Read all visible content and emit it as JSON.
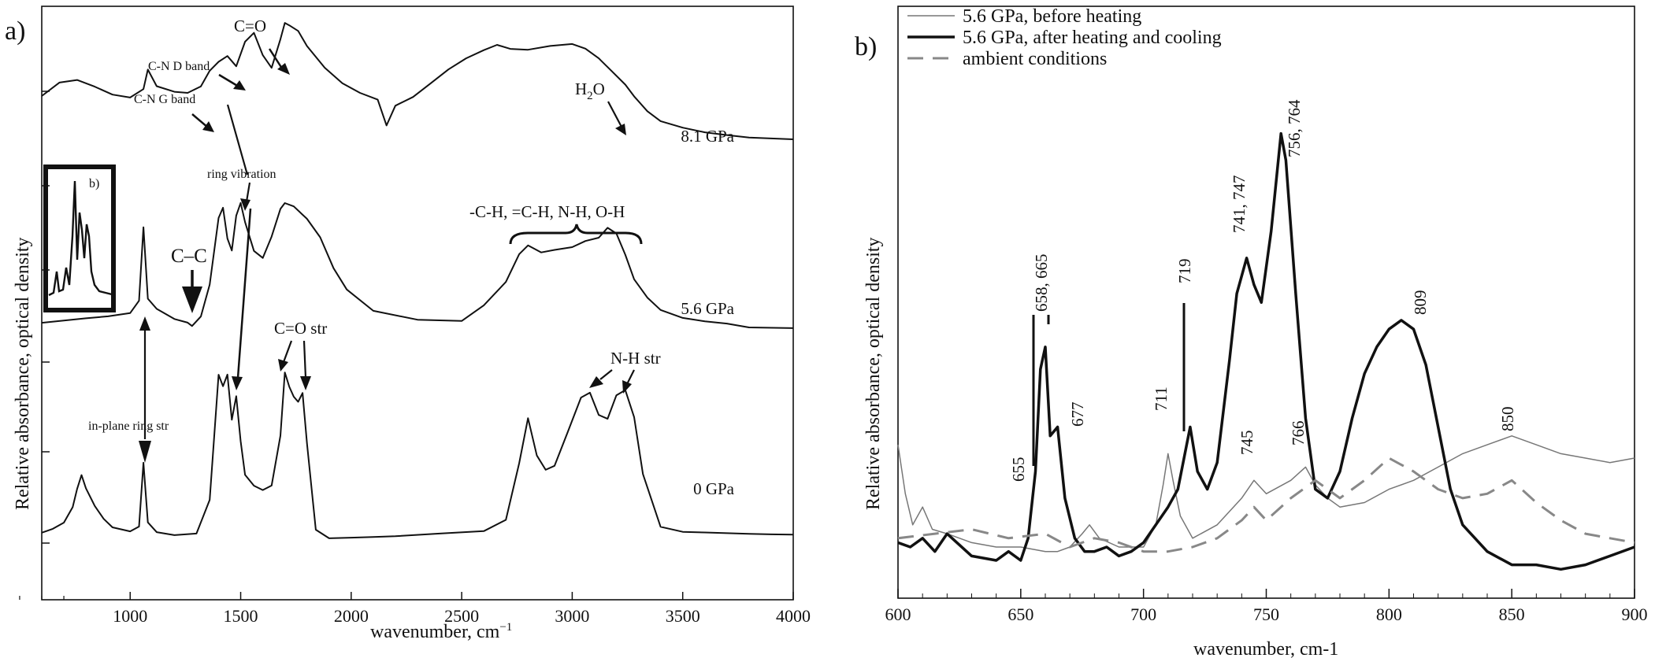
{
  "figure": {
    "label_a": "a)",
    "label_b": "b)"
  },
  "chart_data": [
    {
      "type": "line",
      "panel": "a",
      "xlabel": "wavenumber, cm",
      "xlabel_superscript": "−1",
      "ylabel": "Relative absorbance, optical density",
      "xlim": [
        600,
        4000
      ],
      "xticks": [
        1000,
        1500,
        2000,
        2500,
        3000,
        3500,
        4000
      ],
      "tick_labels": [
        "1000",
        "1500",
        "2000",
        "2500",
        "3000",
        "3500",
        "4000"
      ],
      "series": [
        {
          "name": "8.1 GPa",
          "x": [
            600,
            680,
            760,
            840,
            920,
            1000,
            1060,
            1080,
            1120,
            1200,
            1260,
            1320,
            1360,
            1400,
            1440,
            1480,
            1520,
            1560,
            1600,
            1640,
            1680,
            1700,
            1720,
            1760,
            1800,
            1880,
            1960,
            2040,
            2120,
            2160,
            2200,
            2280,
            2360,
            2440,
            2520,
            2600,
            2660,
            2720,
            2800,
            2900,
            3000,
            3060,
            3120,
            3180,
            3240,
            3280,
            3340,
            3400,
            3500,
            3600,
            3700,
            3800,
            3900,
            4000
          ],
          "y": [
            0.55,
            0.64,
            0.66,
            0.62,
            0.57,
            0.55,
            0.6,
            0.72,
            0.61,
            0.57,
            0.56,
            0.6,
            0.7,
            0.76,
            0.8,
            0.74,
            0.9,
            0.96,
            0.82,
            0.74,
            0.92,
            1.02,
            1.0,
            0.96,
            0.86,
            0.72,
            0.62,
            0.56,
            0.52,
            0.36,
            0.49,
            0.55,
            0.64,
            0.73,
            0.8,
            0.85,
            0.88,
            0.85,
            0.84,
            0.86,
            0.87,
            0.84,
            0.78,
            0.7,
            0.62,
            0.55,
            0.46,
            0.4,
            0.36,
            0.33,
            0.31,
            0.29,
            0.28,
            0.27
          ]
        },
        {
          "name": "5.6 GPa",
          "x": [
            600,
            700,
            800,
            900,
            1000,
            1040,
            1060,
            1080,
            1120,
            1200,
            1260,
            1280,
            1320,
            1360,
            1400,
            1420,
            1440,
            1460,
            1480,
            1500,
            1520,
            1560,
            1600,
            1640,
            1680,
            1700,
            1740,
            1800,
            1860,
            1920,
            1980,
            2100,
            2300,
            2500,
            2600,
            2700,
            2760,
            2800,
            2860,
            2920,
            3000,
            3060,
            3120,
            3160,
            3200,
            3240,
            3280,
            3340,
            3400,
            3500,
            3600,
            3700,
            3800,
            4000
          ],
          "y": [
            0.25,
            0.26,
            0.27,
            0.28,
            0.3,
            0.38,
            0.85,
            0.4,
            0.34,
            0.28,
            0.26,
            0.24,
            0.3,
            0.5,
            0.92,
            0.98,
            0.78,
            0.7,
            0.92,
            1.0,
            0.88,
            0.7,
            0.66,
            0.8,
            0.98,
            1.02,
            1.0,
            0.92,
            0.8,
            0.6,
            0.46,
            0.32,
            0.26,
            0.25,
            0.35,
            0.5,
            0.68,
            0.74,
            0.7,
            0.72,
            0.74,
            0.78,
            0.8,
            0.86,
            0.82,
            0.68,
            0.52,
            0.4,
            0.32,
            0.27,
            0.25,
            0.24,
            0.22,
            0.22
          ]
        },
        {
          "name": "0 GPa",
          "x": [
            600,
            650,
            700,
            740,
            760,
            780,
            800,
            840,
            880,
            920,
            1000,
            1040,
            1060,
            1080,
            1120,
            1200,
            1300,
            1360,
            1400,
            1420,
            1440,
            1460,
            1480,
            1500,
            1520,
            1560,
            1600,
            1640,
            1680,
            1700,
            1720,
            1740,
            1760,
            1780,
            1800,
            1840,
            1900,
            2000,
            2100,
            2200,
            2400,
            2600,
            2700,
            2760,
            2800,
            2840,
            2880,
            2920,
            2980,
            3040,
            3080,
            3120,
            3160,
            3200,
            3240,
            3280,
            3320,
            3400,
            3500,
            3600,
            3700,
            3800,
            3900,
            4000
          ],
          "y": [
            0.1,
            0.12,
            0.15,
            0.22,
            0.3,
            0.36,
            0.3,
            0.22,
            0.16,
            0.12,
            0.1,
            0.12,
            0.4,
            0.14,
            0.1,
            0.09,
            0.1,
            0.25,
            0.8,
            0.75,
            0.8,
            0.6,
            0.7,
            0.5,
            0.35,
            0.3,
            0.28,
            0.3,
            0.52,
            0.8,
            0.74,
            0.7,
            0.68,
            0.72,
            0.5,
            0.12,
            0.08,
            0.08,
            0.08,
            0.08,
            0.09,
            0.1,
            0.15,
            0.4,
            0.6,
            0.44,
            0.38,
            0.4,
            0.55,
            0.7,
            0.72,
            0.62,
            0.6,
            0.7,
            0.72,
            0.6,
            0.35,
            0.12,
            0.1,
            0.1,
            0.1,
            0.1,
            0.1,
            0.1
          ]
        }
      ],
      "series_labels": [
        "8.1 GPa",
        "5.6 GPa",
        "0 GPa"
      ],
      "annotations": {
        "c_eq_o": "C=O",
        "cn_d_band": "C-N D band",
        "cn_g_band": "C-N G band",
        "h2o": "H",
        "h2o_sub": "2",
        "h2o_end": "O",
        "ring_vibration": "ring vibration",
        "c_c": "C–C",
        "ch_group": "-C-H, =C-H, N-H, O-H",
        "co_str": "C=O str",
        "nh_str": "N-H str",
        "in_plane": "in-plane ring str",
        "inset_label": "b)"
      }
    },
    {
      "type": "line",
      "panel": "b",
      "xlabel": "wavenumber, cm-1",
      "ylabel": "Relative absorbance, optical density",
      "xlim": [
        600,
        900
      ],
      "xticks": [
        600,
        650,
        700,
        750,
        800,
        850,
        900
      ],
      "tick_labels": [
        "600",
        "650",
        "700",
        "750",
        "800",
        "850",
        "900"
      ],
      "legend": "top-left",
      "series": [
        {
          "name": "5.6 GPa, before heating",
          "style": "thin",
          "color": "#777777",
          "x": [
            600,
            603,
            606,
            610,
            614,
            620,
            630,
            640,
            650,
            660,
            665,
            670,
            675,
            678,
            682,
            690,
            700,
            705,
            708,
            710,
            712,
            715,
            720,
            730,
            740,
            745,
            750,
            760,
            766,
            770,
            775,
            780,
            790,
            800,
            810,
            820,
            830,
            840,
            850,
            860,
            870,
            880,
            890,
            900
          ],
          "y": [
            0.26,
            0.15,
            0.08,
            0.12,
            0.07,
            0.06,
            0.04,
            0.03,
            0.03,
            0.02,
            0.02,
            0.03,
            0.06,
            0.08,
            0.05,
            0.03,
            0.03,
            0.08,
            0.17,
            0.24,
            0.18,
            0.1,
            0.05,
            0.08,
            0.14,
            0.18,
            0.15,
            0.18,
            0.21,
            0.17,
            0.14,
            0.12,
            0.13,
            0.16,
            0.18,
            0.21,
            0.24,
            0.26,
            0.28,
            0.26,
            0.24,
            0.23,
            0.22,
            0.23
          ]
        },
        {
          "name": "5.6 GPa, after heating and cooling",
          "style": "thick",
          "color": "#111111",
          "x": [
            600,
            605,
            610,
            615,
            620,
            630,
            640,
            645,
            650,
            653,
            656,
            658,
            660,
            662,
            665,
            668,
            672,
            676,
            680,
            685,
            690,
            695,
            700,
            705,
            710,
            714,
            719,
            722,
            726,
            730,
            735,
            738,
            742,
            745,
            748,
            752,
            756,
            758,
            762,
            766,
            770,
            775,
            780,
            785,
            790,
            795,
            800,
            805,
            810,
            815,
            820,
            825,
            830,
            840,
            850,
            860,
            870,
            880,
            890,
            900
          ],
          "y": [
            0.04,
            0.03,
            0.05,
            0.02,
            0.06,
            0.01,
            0.0,
            0.02,
            0.0,
            0.05,
            0.2,
            0.43,
            0.48,
            0.28,
            0.3,
            0.14,
            0.05,
            0.02,
            0.02,
            0.03,
            0.01,
            0.02,
            0.04,
            0.08,
            0.12,
            0.16,
            0.3,
            0.2,
            0.16,
            0.22,
            0.45,
            0.6,
            0.68,
            0.62,
            0.58,
            0.74,
            0.96,
            0.9,
            0.6,
            0.32,
            0.16,
            0.14,
            0.2,
            0.32,
            0.42,
            0.48,
            0.52,
            0.54,
            0.52,
            0.44,
            0.3,
            0.16,
            0.08,
            0.02,
            -0.01,
            -0.01,
            -0.02,
            -0.01,
            0.01,
            0.03
          ]
        },
        {
          "name": "ambient conditions",
          "style": "dashed",
          "color": "#888888",
          "x": [
            600,
            615,
            630,
            645,
            660,
            670,
            680,
            690,
            700,
            710,
            720,
            730,
            740,
            745,
            750,
            760,
            770,
            780,
            790,
            800,
            810,
            820,
            830,
            840,
            850,
            860,
            870,
            880,
            890,
            900
          ],
          "y": [
            0.05,
            0.06,
            0.07,
            0.05,
            0.06,
            0.03,
            0.05,
            0.04,
            0.02,
            0.02,
            0.03,
            0.05,
            0.09,
            0.12,
            0.09,
            0.14,
            0.18,
            0.14,
            0.18,
            0.23,
            0.2,
            0.16,
            0.14,
            0.15,
            0.18,
            0.13,
            0.09,
            0.06,
            0.05,
            0.04
          ]
        }
      ],
      "peak_labels": [
        "655",
        "658, 665",
        "677",
        "711",
        "719",
        "741, 747",
        "756, 764",
        "745",
        "766",
        "809",
        "850"
      ]
    }
  ]
}
